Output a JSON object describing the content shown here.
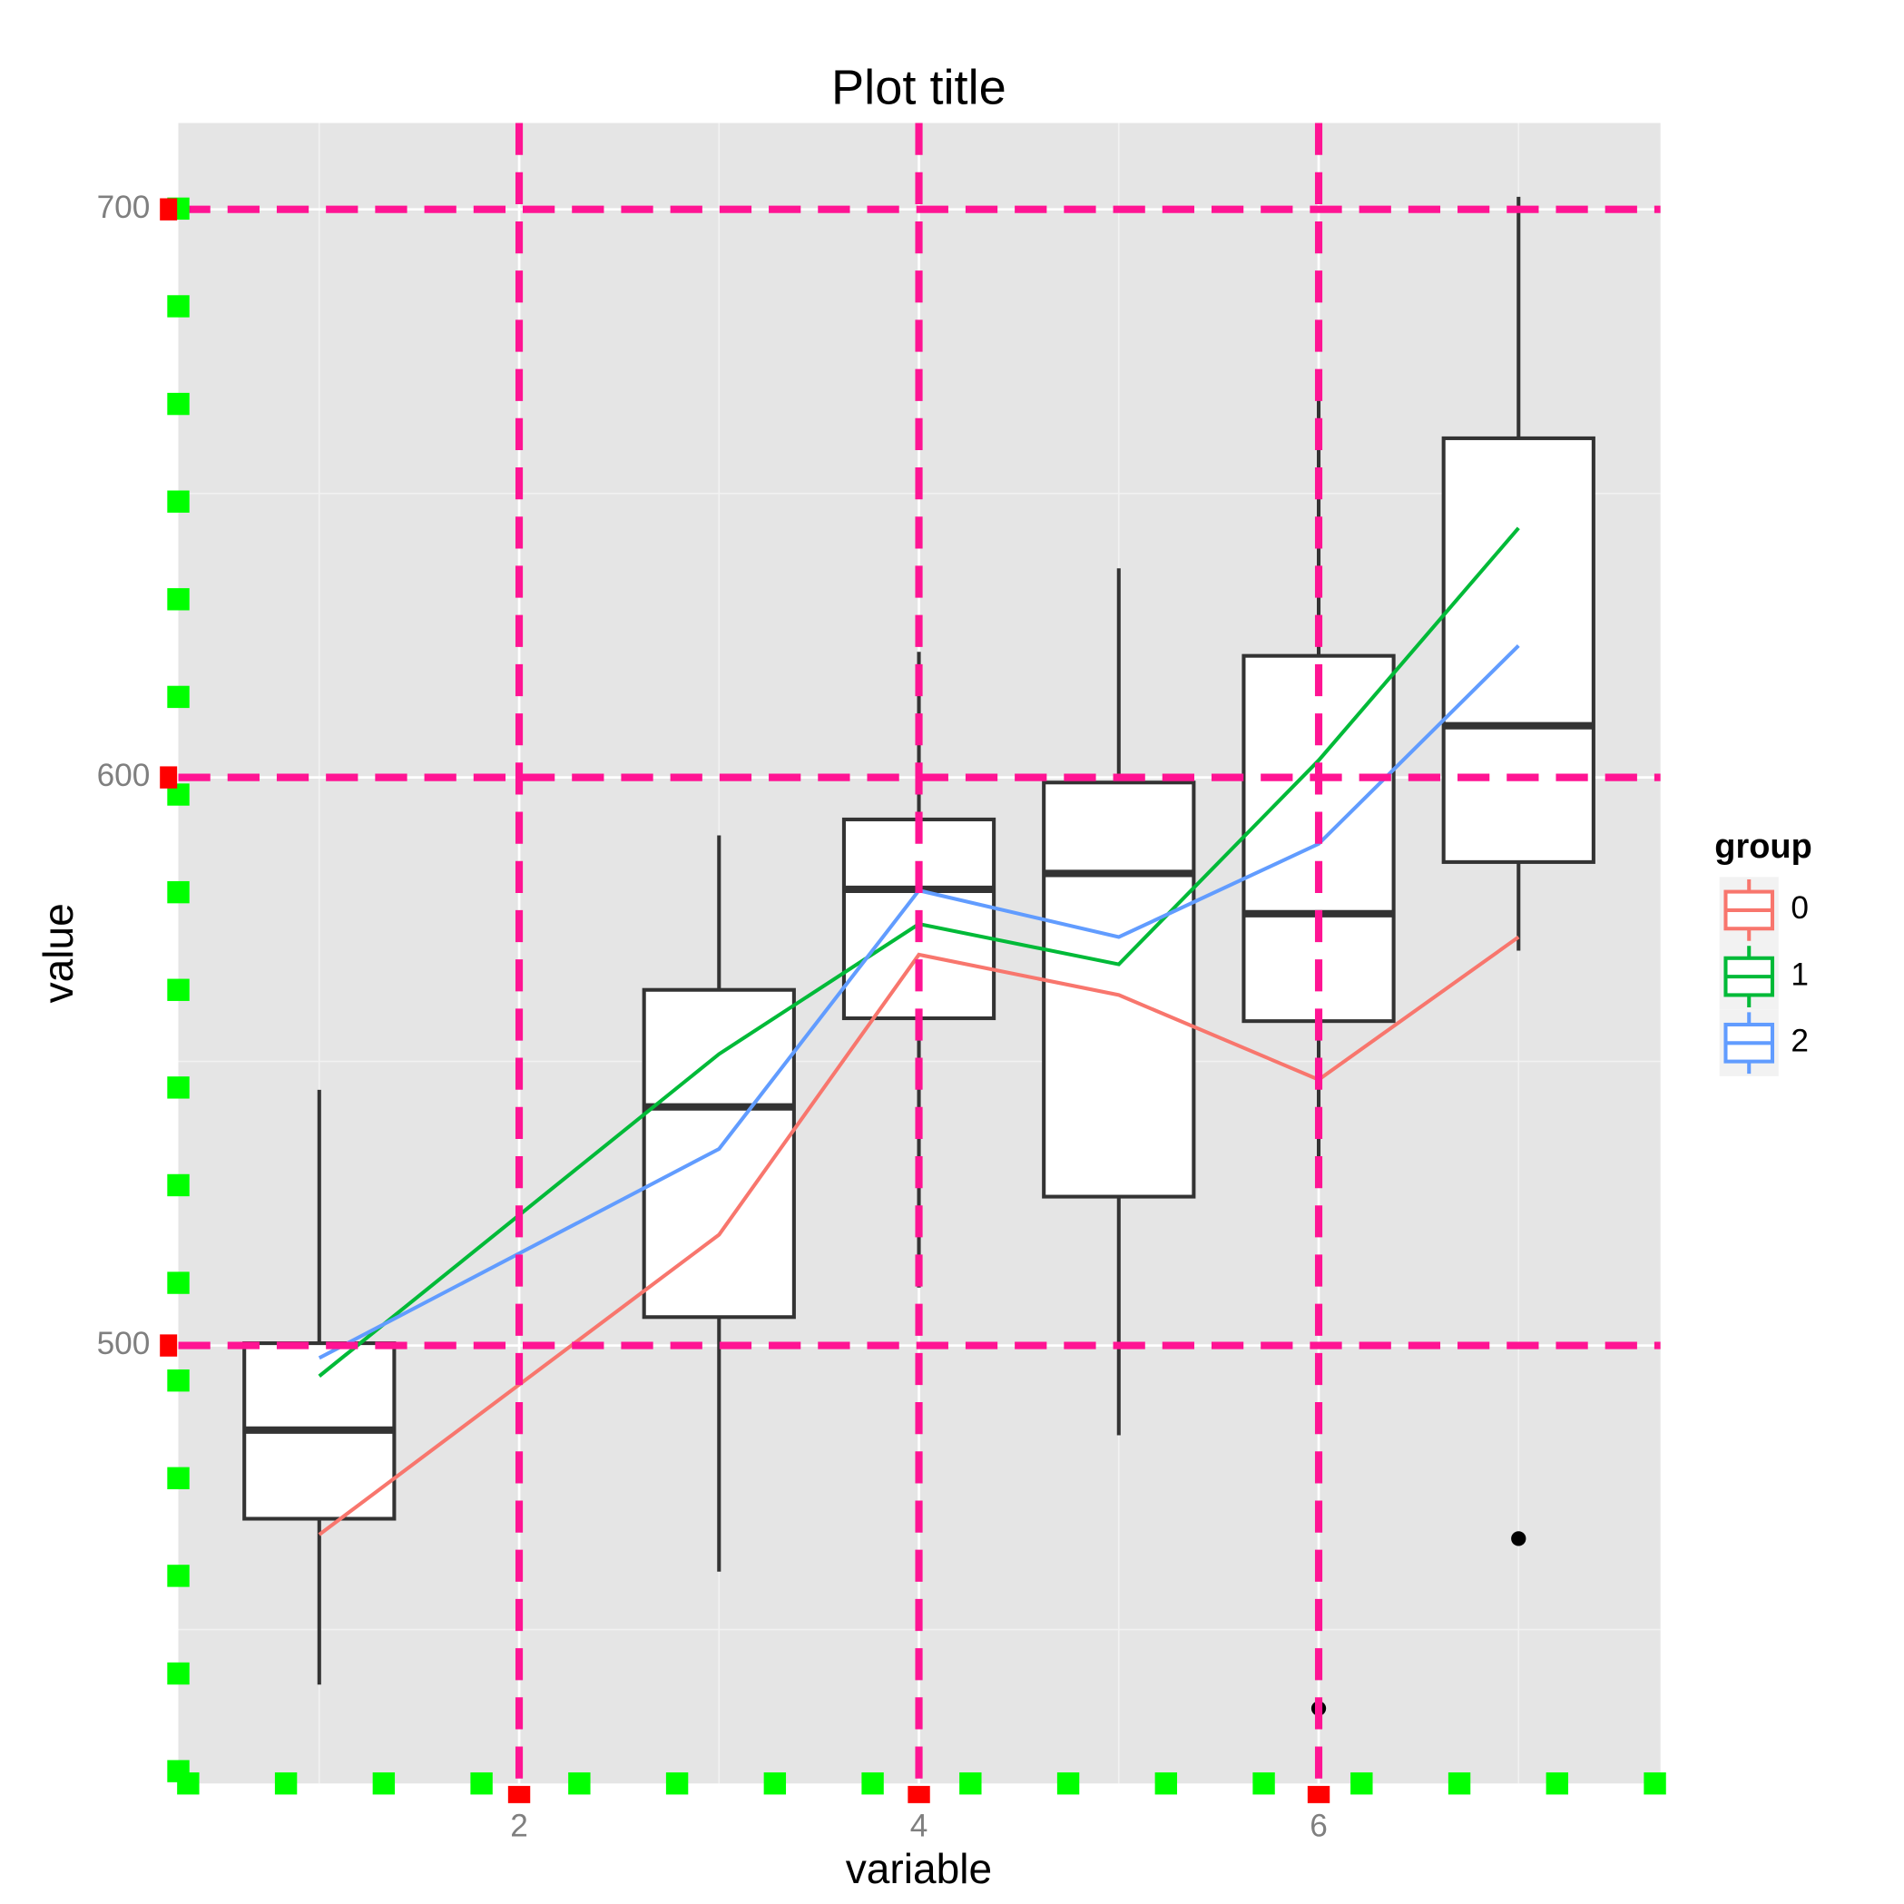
{
  "chart_data": {
    "type": "boxplot",
    "title": "Plot title",
    "x_label": "variable",
    "y_label": "value",
    "xlim": [
      0.295,
      7.71
    ],
    "ylim": [
      422.9,
      715.2
    ],
    "xticks": [
      2,
      4,
      6
    ],
    "yticks": [
      500,
      600,
      700
    ],
    "xminor": [
      1,
      3,
      5,
      7
    ],
    "yminor": [
      450,
      550,
      650
    ],
    "grid": true,
    "highlight_color": "#ff1493",
    "legend_title": "group",
    "legend_position": "right",
    "boxes": {
      "x": [
        1,
        3,
        4,
        5,
        6,
        7
      ],
      "whisker_low": [
        440.3,
        460.2,
        510.2,
        484.2,
        532.0,
        569.5
      ],
      "q1": [
        469.5,
        505.0,
        557.6,
        526.2,
        557.1,
        585.1
      ],
      "median": [
        485.1,
        542.0,
        580.3,
        583.1,
        576.0,
        609.1
      ],
      "q3": [
        500.4,
        562.6,
        592.6,
        599.1,
        621.4,
        659.7
      ],
      "whisker_high": [
        545.0,
        589.8,
        622.1,
        636.8,
        670.8,
        702.2
      ],
      "outliers": [
        [],
        [],
        [],
        [],
        [
          436.1
        ],
        [
          466.0
        ]
      ]
    },
    "series": [
      {
        "name": "0",
        "color": "#F8766D",
        "x": [
          1,
          3,
          4,
          5,
          6,
          7
        ],
        "values": [
          466.7,
          519.5,
          568.8,
          561.7,
          546.8,
          571.9
        ]
      },
      {
        "name": "1",
        "color": "#00BA38",
        "x": [
          1,
          3,
          4,
          5,
          6,
          7
        ],
        "values": [
          494.6,
          551.3,
          574.2,
          567.1,
          603.0,
          643.9
        ]
      },
      {
        "name": "2",
        "color": "#619CFF",
        "x": [
          1,
          3,
          4,
          5,
          6,
          7
        ],
        "values": [
          497.8,
          534.6,
          580.1,
          571.9,
          588.3,
          623.2
        ]
      }
    ]
  }
}
